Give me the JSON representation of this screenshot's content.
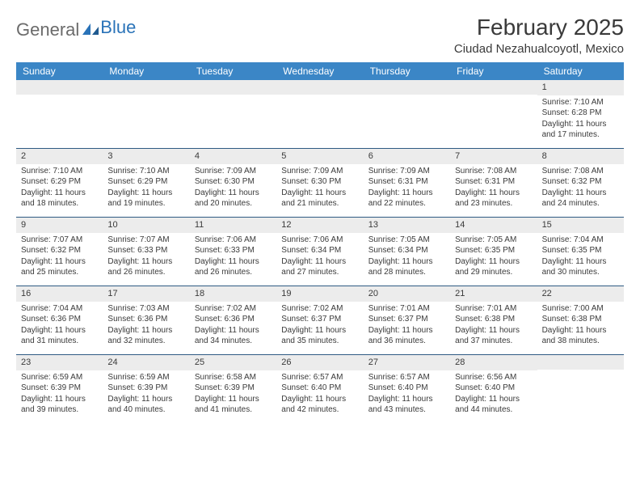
{
  "logo": {
    "text_gray": "General",
    "text_blue": "Blue"
  },
  "title": "February 2025",
  "location": "Ciudad Nezahualcoyotl, Mexico",
  "colors": {
    "header_bg": "#3b86c6",
    "header_text": "#ffffff",
    "daynum_bg": "#ececec",
    "week_border": "#2f5b83",
    "body_text": "#3a3a3a",
    "logo_gray": "#6b6b6b",
    "logo_blue": "#2a73b8",
    "background": "#ffffff"
  },
  "dow": [
    "Sunday",
    "Monday",
    "Tuesday",
    "Wednesday",
    "Thursday",
    "Friday",
    "Saturday"
  ],
  "weeks": [
    [
      {
        "n": "",
        "sr": "",
        "ss": "",
        "dl": ""
      },
      {
        "n": "",
        "sr": "",
        "ss": "",
        "dl": ""
      },
      {
        "n": "",
        "sr": "",
        "ss": "",
        "dl": ""
      },
      {
        "n": "",
        "sr": "",
        "ss": "",
        "dl": ""
      },
      {
        "n": "",
        "sr": "",
        "ss": "",
        "dl": ""
      },
      {
        "n": "",
        "sr": "",
        "ss": "",
        "dl": ""
      },
      {
        "n": "1",
        "sr": "7:10 AM",
        "ss": "6:28 PM",
        "dl": "11 hours and 17 minutes."
      }
    ],
    [
      {
        "n": "2",
        "sr": "7:10 AM",
        "ss": "6:29 PM",
        "dl": "11 hours and 18 minutes."
      },
      {
        "n": "3",
        "sr": "7:10 AM",
        "ss": "6:29 PM",
        "dl": "11 hours and 19 minutes."
      },
      {
        "n": "4",
        "sr": "7:09 AM",
        "ss": "6:30 PM",
        "dl": "11 hours and 20 minutes."
      },
      {
        "n": "5",
        "sr": "7:09 AM",
        "ss": "6:30 PM",
        "dl": "11 hours and 21 minutes."
      },
      {
        "n": "6",
        "sr": "7:09 AM",
        "ss": "6:31 PM",
        "dl": "11 hours and 22 minutes."
      },
      {
        "n": "7",
        "sr": "7:08 AM",
        "ss": "6:31 PM",
        "dl": "11 hours and 23 minutes."
      },
      {
        "n": "8",
        "sr": "7:08 AM",
        "ss": "6:32 PM",
        "dl": "11 hours and 24 minutes."
      }
    ],
    [
      {
        "n": "9",
        "sr": "7:07 AM",
        "ss": "6:32 PM",
        "dl": "11 hours and 25 minutes."
      },
      {
        "n": "10",
        "sr": "7:07 AM",
        "ss": "6:33 PM",
        "dl": "11 hours and 26 minutes."
      },
      {
        "n": "11",
        "sr": "7:06 AM",
        "ss": "6:33 PM",
        "dl": "11 hours and 26 minutes."
      },
      {
        "n": "12",
        "sr": "7:06 AM",
        "ss": "6:34 PM",
        "dl": "11 hours and 27 minutes."
      },
      {
        "n": "13",
        "sr": "7:05 AM",
        "ss": "6:34 PM",
        "dl": "11 hours and 28 minutes."
      },
      {
        "n": "14",
        "sr": "7:05 AM",
        "ss": "6:35 PM",
        "dl": "11 hours and 29 minutes."
      },
      {
        "n": "15",
        "sr": "7:04 AM",
        "ss": "6:35 PM",
        "dl": "11 hours and 30 minutes."
      }
    ],
    [
      {
        "n": "16",
        "sr": "7:04 AM",
        "ss": "6:36 PM",
        "dl": "11 hours and 31 minutes."
      },
      {
        "n": "17",
        "sr": "7:03 AM",
        "ss": "6:36 PM",
        "dl": "11 hours and 32 minutes."
      },
      {
        "n": "18",
        "sr": "7:02 AM",
        "ss": "6:36 PM",
        "dl": "11 hours and 34 minutes."
      },
      {
        "n": "19",
        "sr": "7:02 AM",
        "ss": "6:37 PM",
        "dl": "11 hours and 35 minutes."
      },
      {
        "n": "20",
        "sr": "7:01 AM",
        "ss": "6:37 PM",
        "dl": "11 hours and 36 minutes."
      },
      {
        "n": "21",
        "sr": "7:01 AM",
        "ss": "6:38 PM",
        "dl": "11 hours and 37 minutes."
      },
      {
        "n": "22",
        "sr": "7:00 AM",
        "ss": "6:38 PM",
        "dl": "11 hours and 38 minutes."
      }
    ],
    [
      {
        "n": "23",
        "sr": "6:59 AM",
        "ss": "6:39 PM",
        "dl": "11 hours and 39 minutes."
      },
      {
        "n": "24",
        "sr": "6:59 AM",
        "ss": "6:39 PM",
        "dl": "11 hours and 40 minutes."
      },
      {
        "n": "25",
        "sr": "6:58 AM",
        "ss": "6:39 PM",
        "dl": "11 hours and 41 minutes."
      },
      {
        "n": "26",
        "sr": "6:57 AM",
        "ss": "6:40 PM",
        "dl": "11 hours and 42 minutes."
      },
      {
        "n": "27",
        "sr": "6:57 AM",
        "ss": "6:40 PM",
        "dl": "11 hours and 43 minutes."
      },
      {
        "n": "28",
        "sr": "6:56 AM",
        "ss": "6:40 PM",
        "dl": "11 hours and 44 minutes."
      },
      {
        "n": "",
        "sr": "",
        "ss": "",
        "dl": ""
      }
    ]
  ],
  "labels": {
    "sunrise": "Sunrise:",
    "sunset": "Sunset:",
    "daylight": "Daylight:"
  }
}
